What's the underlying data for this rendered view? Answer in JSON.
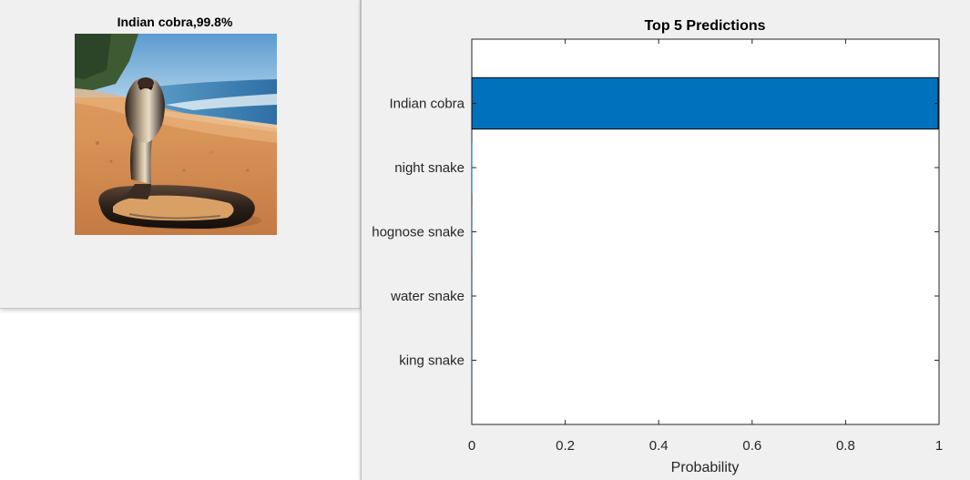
{
  "image_panel": {
    "title": "Indian cobra,99.8%",
    "image": "indian-cobra-on-beach-photo"
  },
  "chart_data": {
    "type": "bar",
    "orientation": "horizontal",
    "title": "Top 5 Predictions",
    "xlabel": "Probability",
    "ylabel": "",
    "categories": [
      "Indian cobra",
      "night snake",
      "hognose snake",
      "water snake",
      "king snake"
    ],
    "values": [
      0.998,
      0.001,
      0.0005,
      0.0003,
      0.0002
    ],
    "xlim": [
      0,
      1
    ],
    "xticks": [
      "0",
      "0.2",
      "0.4",
      "0.6",
      "0.8",
      "1"
    ],
    "bar_color": "#0072BD",
    "grid": false
  }
}
